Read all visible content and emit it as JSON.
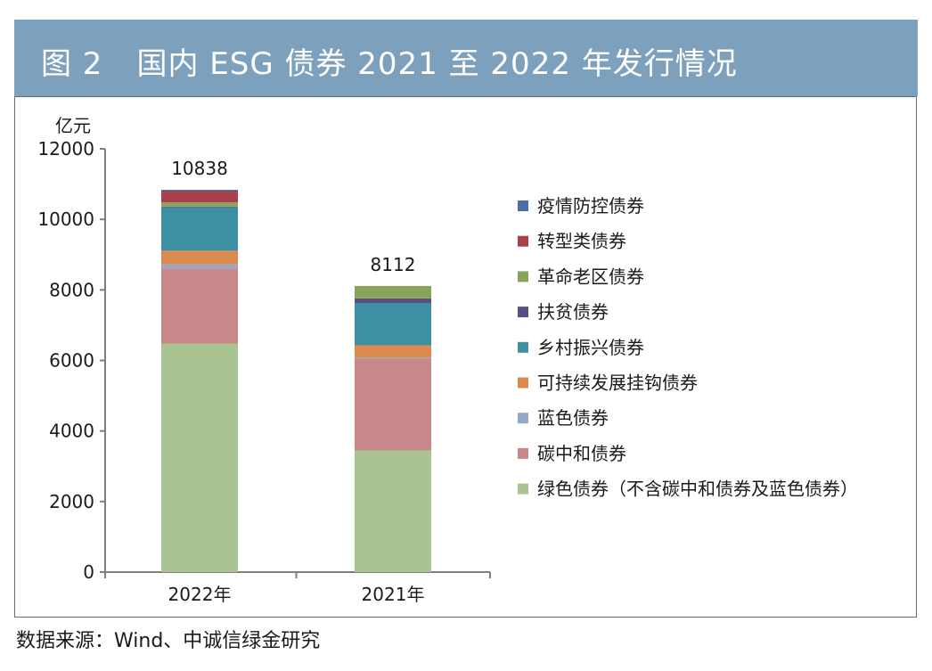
{
  "title": "图 2 国内 ESG 债券 2021 至 2022 年发行情况",
  "title_figure_no": "图 2",
  "title_text": "国内 ESG 债券 2021 至 2022 年发行情况",
  "source": "数据来源：Wind、中诚信绿金研究",
  "chart_data": {
    "type": "bar",
    "stacked": true,
    "title": "国内 ESG 债券 2021 至 2022 年发行情况",
    "ylabel": "亿元",
    "xlabel": "",
    "ylim": [
      0,
      12000
    ],
    "yticks": [
      "0",
      "2000",
      "4000",
      "6000",
      "8000",
      "10000",
      "12000"
    ],
    "categories": [
      "2022年",
      "2021年"
    ],
    "totals": [
      "10838",
      "8112"
    ],
    "legend_position": "right",
    "series": [
      {
        "name": "绿色债券（不含碳中和债券及蓝色债券）",
        "color": "#a9c490",
        "values": [
          6480,
          3450
        ]
      },
      {
        "name": "碳中和债券",
        "color": "#c8888a",
        "values": [
          2130,
          2600
        ]
      },
      {
        "name": "蓝色债券",
        "color": "#93a9c6",
        "values": [
          110,
          30
        ]
      },
      {
        "name": "可持续发展挂钩债券",
        "color": "#dc8b50",
        "values": [
          390,
          350
        ]
      },
      {
        "name": "乡村振兴债券",
        "color": "#3f8fa2",
        "values": [
          1230,
          1200
        ]
      },
      {
        "name": "扶贫债券",
        "color": "#5b4e86",
        "values": [
          20,
          130
        ]
      },
      {
        "name": "革命老区债券",
        "color": "#86a55a",
        "values": [
          120,
          352
        ]
      },
      {
        "name": "转型类债券",
        "color": "#a8414b",
        "values": [
          320,
          0
        ]
      },
      {
        "name": "疫情防控债券",
        "color": "#4a6fa5",
        "values": [
          38,
          0
        ]
      }
    ]
  }
}
